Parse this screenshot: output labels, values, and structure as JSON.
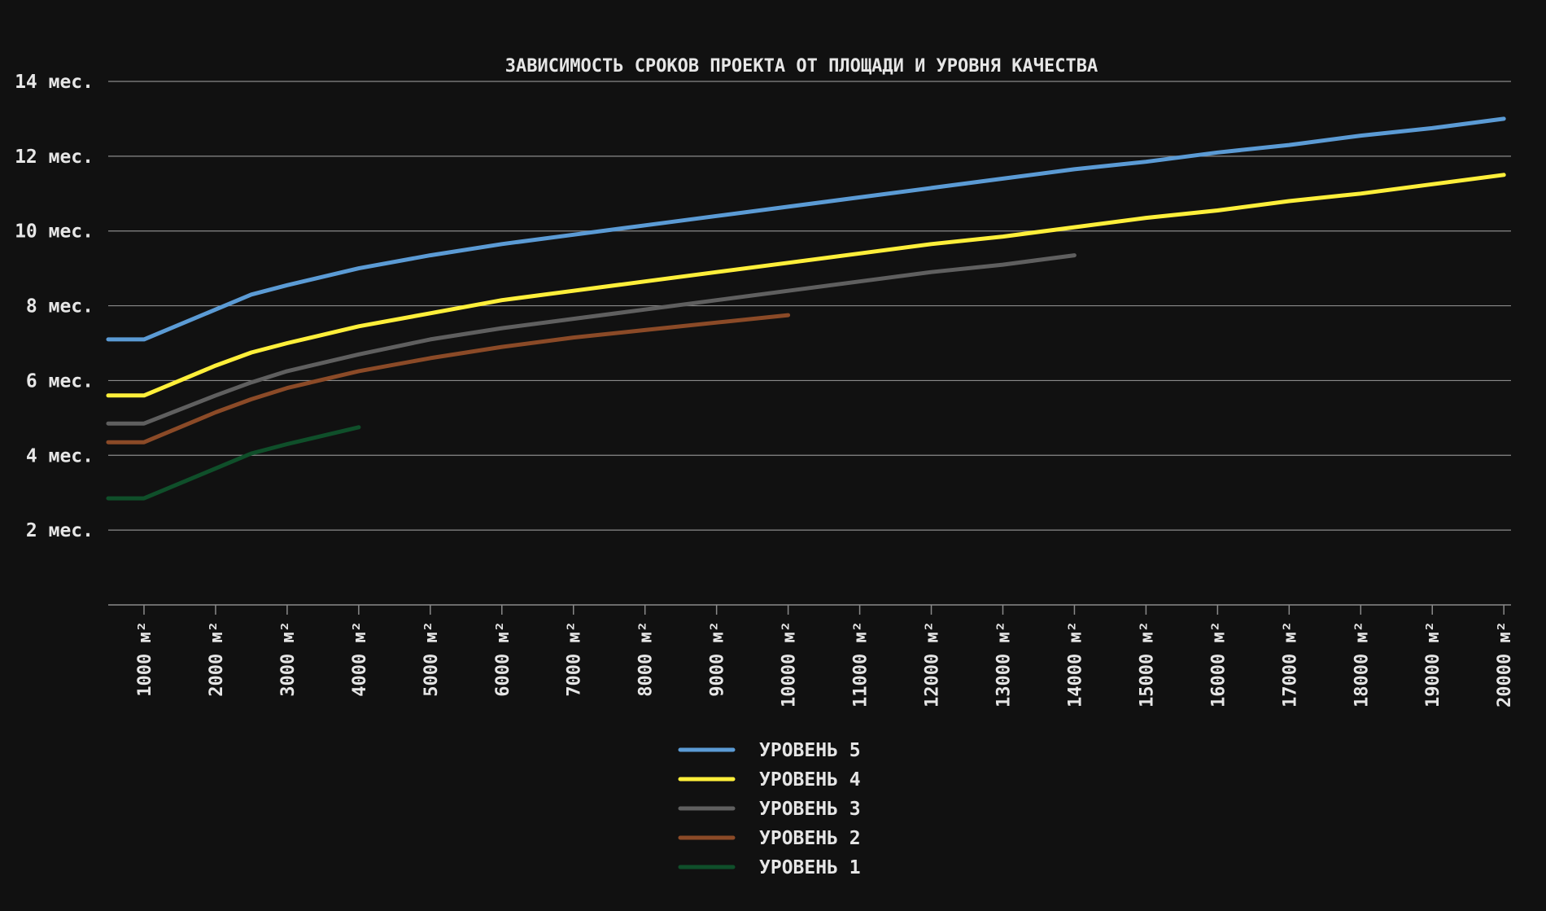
{
  "chart_data": {
    "type": "line",
    "title": "ЗАВИСИМОСТЬ СРОКОВ ПРОЕКТА ОТ ПЛОЩАДИ И УРОВНЯ КАЧЕСТВА",
    "xlabel": "",
    "ylabel": "",
    "x_unit": "м²",
    "y_unit": "мес.",
    "xlim": [
      500,
      20100
    ],
    "ylim": [
      0,
      14
    ],
    "yticks": [
      2,
      4,
      6,
      8,
      10,
      12,
      14
    ],
    "ytick_labels": [
      "2 мес.",
      "4 мес.",
      "6 мес.",
      "8 мес.",
      "10 мес.",
      "12 мес.",
      "14 мес."
    ],
    "xticks": [
      1000,
      2000,
      3000,
      4000,
      5000,
      6000,
      7000,
      8000,
      9000,
      10000,
      11000,
      12000,
      13000,
      14000,
      15000,
      16000,
      17000,
      18000,
      19000,
      20000
    ],
    "xtick_labels": [
      "1000 м²",
      "2000 м²",
      "3000 м²",
      "4000 м²",
      "5000 м²",
      "6000 м²",
      "7000 м²",
      "8000 м²",
      "9000 м²",
      "10000 м²",
      "11000 м²",
      "12000 м²",
      "13000 м²",
      "14000 м²",
      "15000 м²",
      "16000 м²",
      "17000 м²",
      "18000 м²",
      "19000 м²",
      "20000 м²"
    ],
    "grid": true,
    "legend_position": "bottom-center",
    "series": [
      {
        "name": "УРОВЕНЬ 5",
        "color": "#5b9bd5",
        "x": [
          500,
          1000,
          2000,
          2500,
          3000,
          4000,
          5000,
          6000,
          7000,
          8000,
          9000,
          10000,
          11000,
          12000,
          13000,
          14000,
          15000,
          16000,
          17000,
          18000,
          19000,
          20000
        ],
        "y": [
          7.1,
          7.1,
          7.9,
          8.3,
          8.55,
          9.0,
          9.35,
          9.65,
          9.9,
          10.15,
          10.4,
          10.65,
          10.9,
          11.15,
          11.4,
          11.65,
          11.85,
          12.1,
          12.3,
          12.55,
          12.75,
          13.0
        ]
      },
      {
        "name": "УРОВЕНЬ 4",
        "color": "#ffef3a",
        "x": [
          500,
          1000,
          2000,
          2500,
          3000,
          4000,
          5000,
          6000,
          7000,
          8000,
          9000,
          10000,
          11000,
          12000,
          13000,
          14000,
          15000,
          16000,
          17000,
          18000,
          19000,
          20000
        ],
        "y": [
          5.6,
          5.6,
          6.4,
          6.75,
          7.0,
          7.45,
          7.8,
          8.15,
          8.4,
          8.65,
          8.9,
          9.15,
          9.4,
          9.65,
          9.85,
          10.1,
          10.35,
          10.55,
          10.8,
          11.0,
          11.25,
          11.5
        ]
      },
      {
        "name": "УРОВЕНЬ 3",
        "color": "#5f5f5f",
        "x": [
          500,
          1000,
          2000,
          2500,
          3000,
          4000,
          5000,
          6000,
          7000,
          8000,
          9000,
          10000,
          11000,
          12000,
          13000,
          14000
        ],
        "y": [
          4.85,
          4.85,
          5.6,
          5.95,
          6.25,
          6.7,
          7.1,
          7.4,
          7.65,
          7.9,
          8.15,
          8.4,
          8.65,
          8.9,
          9.1,
          9.35
        ]
      },
      {
        "name": "УРОВЕНЬ 2",
        "color": "#8b4a27",
        "x": [
          500,
          1000,
          2000,
          2500,
          3000,
          4000,
          5000,
          6000,
          7000,
          8000,
          9000,
          10000
        ],
        "y": [
          4.35,
          4.35,
          5.15,
          5.5,
          5.8,
          6.25,
          6.6,
          6.9,
          7.15,
          7.35,
          7.55,
          7.75
        ]
      },
      {
        "name": "УРОВЕНЬ 1",
        "color": "#0f4f2a",
        "x": [
          500,
          1000,
          2000,
          2500,
          3000,
          4000
        ],
        "y": [
          2.85,
          2.85,
          3.65,
          4.05,
          4.3,
          4.75
        ]
      }
    ]
  }
}
